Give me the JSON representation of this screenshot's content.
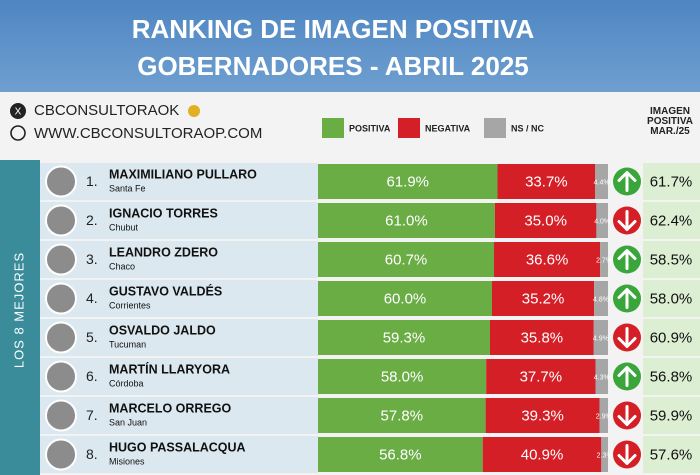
{
  "chart_data": {
    "type": "bar",
    "stacked": true,
    "orientation": "horizontal",
    "title": "RANKING DE IMAGEN POSITIVA",
    "subtitle": "GOBERNADORES - ABRIL 2025",
    "handle": "CBCONSULTORAOK",
    "website": "WWW.CBCONSULTORAOP.COM",
    "group_label": "LOS 8 MEJORES",
    "ranks": [
      "1.",
      "2.",
      "3.",
      "4.",
      "5.",
      "6.",
      "7.",
      "8."
    ],
    "categories": [
      "MAXIMILIANO PULLARO",
      "IGNACIO TORRES",
      "LEANDRO ZDERO",
      "GUSTAVO VALDÉS",
      "OSVALDO JALDO",
      "MARTÍN LLARYORA",
      "MARCELO ORREGO",
      "HUGO PASSALACQUA"
    ],
    "provinces": [
      "Santa Fe",
      "Chubut",
      "Chaco",
      "Corrientes",
      "Tucuman",
      "Córdoba",
      "San Juan",
      "Misiones"
    ],
    "xlim": [
      0,
      100
    ],
    "series": [
      {
        "name": "POSITIVA",
        "color": "#6aad45",
        "values": [
          61.9,
          61.0,
          60.7,
          60.0,
          59.3,
          58.0,
          57.8,
          56.8
        ],
        "value_labels": [
          "61.9%",
          "61.0%",
          "60.7%",
          "60.0%",
          "59.3%",
          "58.0%",
          "57.8%",
          "56.8%"
        ]
      },
      {
        "name": "NEGATIVA",
        "color": "#d41f26",
        "values": [
          33.7,
          35.0,
          36.6,
          35.2,
          35.8,
          37.7,
          39.3,
          40.9
        ],
        "value_labels": [
          "33.7%",
          "35.0%",
          "36.6%",
          "35.2%",
          "35.8%",
          "37.7%",
          "39.3%",
          "40.9%"
        ]
      },
      {
        "name": "NS / NC",
        "color": "#a6a6a6",
        "values": [
          4.4,
          4.0,
          2.7,
          4.8,
          4.9,
          4.3,
          2.9,
          2.3
        ],
        "value_labels": [
          "4.4%",
          "4.0%",
          "2.7%",
          "4.8%",
          "4.9%",
          "4.3%",
          "2.9%",
          "2.3%"
        ]
      }
    ],
    "trend": [
      "up",
      "down",
      "up",
      "up",
      "down",
      "up",
      "down",
      "down"
    ],
    "previous": {
      "name": "IMAGEN POSITIVA MAR./25",
      "values": [
        61.7,
        62.4,
        58.5,
        58.0,
        60.9,
        56.8,
        59.9,
        57.6
      ],
      "value_labels": [
        "61.7%",
        "62.4%",
        "58.5%",
        "58.0%",
        "60.9%",
        "56.8%",
        "59.9%",
        "57.6%"
      ]
    }
  }
}
